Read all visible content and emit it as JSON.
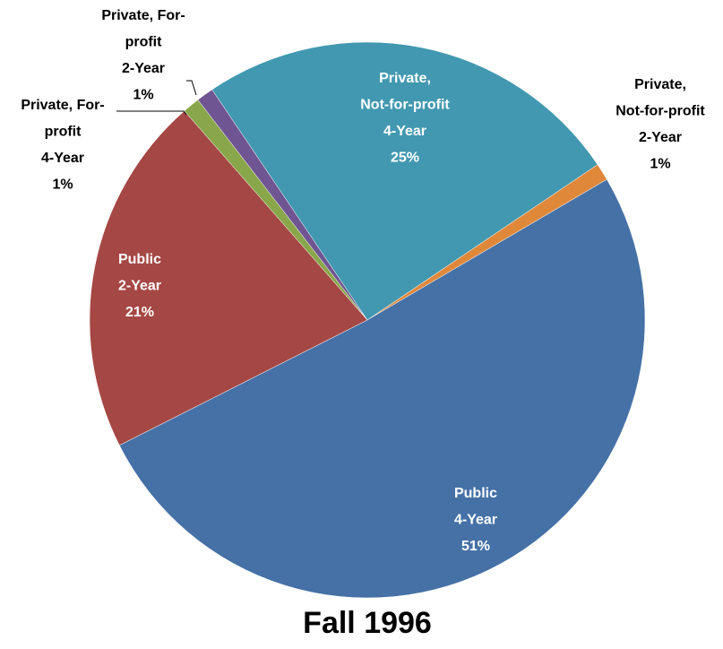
{
  "chart_data": {
    "type": "pie",
    "title": "Fall 1996",
    "categories": [
      [
        "Private,",
        "Not-for-profit",
        "4-Year"
      ],
      [
        "Private,",
        "Not-for-profit",
        "2-Year"
      ],
      [
        "Public",
        "4-Year"
      ],
      [
        "Public",
        "2-Year"
      ],
      [
        "Private, For-",
        "profit",
        "4-Year"
      ],
      [
        "Private, For-",
        "profit",
        "2-Year"
      ]
    ],
    "values": [
      25,
      1,
      51,
      21,
      1,
      1
    ],
    "value_labels": [
      "25%",
      "1%",
      "51%",
      "21%",
      "1%",
      "1%"
    ],
    "colors": [
      "#4298b0",
      "#e0883a",
      "#4571a6",
      "#a54744",
      "#89a74a",
      "#6f5591"
    ]
  }
}
